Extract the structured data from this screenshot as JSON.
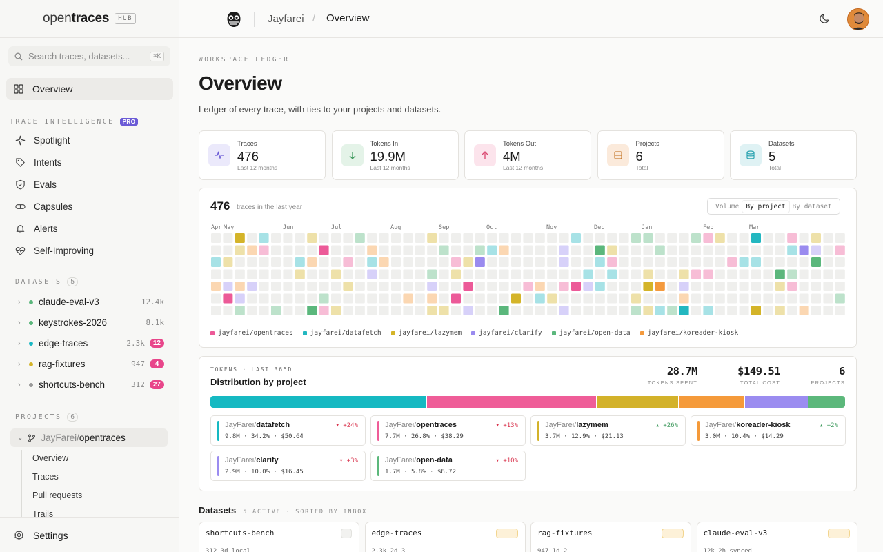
{
  "sidebar": {
    "logo": {
      "part1": "open",
      "part2": "traces",
      "badge": "HUB"
    },
    "search": {
      "placeholder": "Search traces, datasets...",
      "shortcut": "⌘K"
    },
    "overview_label": "Overview",
    "trace_intel": {
      "header": "TRACE INTELLIGENCE",
      "badge": "PRO",
      "items": [
        {
          "label": "Spotlight",
          "icon": "sparkle-icon"
        },
        {
          "label": "Intents",
          "icon": "tag-icon"
        },
        {
          "label": "Evals",
          "icon": "shield-check-icon"
        },
        {
          "label": "Capsules",
          "icon": "capsule-icon"
        },
        {
          "label": "Alerts",
          "icon": "bell-icon"
        },
        {
          "label": "Self-Improving",
          "icon": "heart-pulse-icon"
        }
      ]
    },
    "datasets": {
      "header": "DATASETS",
      "count": "5",
      "items": [
        {
          "name": "claude-eval-v3",
          "size": "12.4k",
          "badge": "",
          "color": "#5bb77c"
        },
        {
          "name": "keystrokes-2026",
          "size": "8.1k",
          "badge": "",
          "color": "#5bb77c"
        },
        {
          "name": "edge-traces",
          "size": "2.3k",
          "badge": "12",
          "color": "#1ab8c4"
        },
        {
          "name": "rag-fixtures",
          "size": "947",
          "badge": "4",
          "color": "#d4b429"
        },
        {
          "name": "shortcuts-bench",
          "size": "312",
          "badge": "27",
          "color": "#9a9a9a"
        }
      ]
    },
    "projects": {
      "header": "PROJECTS",
      "count": "6",
      "active": {
        "owner": "JayFarei/",
        "repo": "opentraces"
      },
      "sub_items": [
        "Overview",
        "Traces",
        "Pull requests",
        "Trails"
      ]
    },
    "settings_label": "Settings"
  },
  "topbar": {
    "crumb_user": "Jayfarei",
    "crumb_sep": "/",
    "crumb_page": "Overview"
  },
  "page": {
    "eyebrow": "WORKSPACE LEDGER",
    "title": "Overview",
    "lede": "Ledger of every trace, with ties to your projects and datasets."
  },
  "stats": [
    {
      "label": "Traces",
      "value": "476",
      "sub": "Last 12 months",
      "icon": "pulse-icon",
      "bg": "#ebe9fb",
      "fg": "#6b5bd6"
    },
    {
      "label": "Tokens In",
      "value": "19.9M",
      "sub": "Last 12 months",
      "icon": "arrow-down-icon",
      "bg": "#e4f3e8",
      "fg": "#3f9a5e"
    },
    {
      "label": "Tokens Out",
      "value": "4M",
      "sub": "Last 12 months",
      "icon": "arrow-up-icon",
      "bg": "#fce4ec",
      "fg": "#d9456f"
    },
    {
      "label": "Projects",
      "value": "6",
      "sub": "Total",
      "icon": "box-icon",
      "bg": "#fbeadb",
      "fg": "#c98037"
    },
    {
      "label": "Datasets",
      "value": "5",
      "sub": "Total",
      "icon": "database-icon",
      "bg": "#dff2f4",
      "fg": "#2aa3b0"
    }
  ],
  "heatmap": {
    "total": "476",
    "caption": "traces in the last year",
    "toggle": [
      "Volume",
      "By project",
      "By dataset"
    ],
    "toggle_active": "By project",
    "months": [
      "Apr",
      "May",
      "Jun",
      "Jul",
      "Aug",
      "Sep",
      "Oct",
      "Nov",
      "Dec",
      "Jan",
      "Feb",
      "Mar"
    ],
    "legend": [
      {
        "label": "jayfarei/opentraces",
        "color": "#ec5a98"
      },
      {
        "label": "jayfarei/datafetch",
        "color": "#23b7c0"
      },
      {
        "label": "jayfarei/lazymem",
        "color": "#d4b429"
      },
      {
        "label": "jayfarei/clarify",
        "color": "#9a8bef"
      },
      {
        "label": "jayfarei/open-data",
        "color": "#5bb77c"
      },
      {
        "label": "jayfarei/koreader-kiosk",
        "color": "#f49a3e"
      }
    ]
  },
  "distribution": {
    "eyebrow": "TOKENS · LAST 365D",
    "title": "Distribution by project",
    "kpis": [
      {
        "value": "28.7M",
        "label": "TOKENS SPENT"
      },
      {
        "value": "$149.51",
        "label": "TOTAL COST"
      },
      {
        "value": "6",
        "label": "PROJECTS"
      }
    ],
    "projects": [
      {
        "owner": "JayFarei/",
        "repo": "datafetch",
        "tokens": "9.8M",
        "share": 34.2,
        "share_text": "34.2%",
        "cost": "$50.64",
        "delta": "▾ +24%",
        "trend": "down",
        "color": "#16b9c2"
      },
      {
        "owner": "JayFarei/",
        "repo": "opentraces",
        "tokens": "7.7M",
        "share": 26.8,
        "share_text": "26.8%",
        "cost": "$38.29",
        "delta": "▾ +13%",
        "trend": "down",
        "color": "#ef5d98"
      },
      {
        "owner": "JayFarei/",
        "repo": "lazymem",
        "tokens": "3.7M",
        "share": 12.9,
        "share_text": "12.9%",
        "cost": "$21.13",
        "delta": "▴ +26%",
        "trend": "up",
        "color": "#d3b22a"
      },
      {
        "owner": "JayFarei/",
        "repo": "koreader-kiosk",
        "tokens": "3.0M",
        "share": 10.4,
        "share_text": "10.4%",
        "cost": "$14.29",
        "delta": "▴ +2%",
        "trend": "up",
        "color": "#f59a3a"
      },
      {
        "owner": "JayFarei/",
        "repo": "clarify",
        "tokens": "2.9M",
        "share": 10.0,
        "share_text": "10.0%",
        "cost": "$16.45",
        "delta": "▾ +3%",
        "trend": "down",
        "color": "#9b8cf0"
      },
      {
        "owner": "JayFarei/",
        "repo": "open-data",
        "tokens": "1.7M",
        "share": 5.8,
        "share_text": "5.8%",
        "cost": "$8.72",
        "delta": "▾ +10%",
        "trend": "down",
        "color": "#5cb87b"
      }
    ]
  },
  "datasets_section": {
    "title": "Datasets",
    "subtitle": "5 ACTIVE · SORTED BY INBOX",
    "cards": [
      {
        "name": "shortcuts-bench",
        "meta": "312   3d   local"
      },
      {
        "name": "edge-traces",
        "meta": "2.3k   2d   3"
      },
      {
        "name": "rag-fixtures",
        "meta": "947   1d   2"
      },
      {
        "name": "claude-eval-v3",
        "meta": "12k   2h   synced"
      }
    ]
  },
  "colors": {
    "accent": "#6b5bd6",
    "badge_pink": "#e8468a",
    "empty_cell": "#efefed"
  }
}
